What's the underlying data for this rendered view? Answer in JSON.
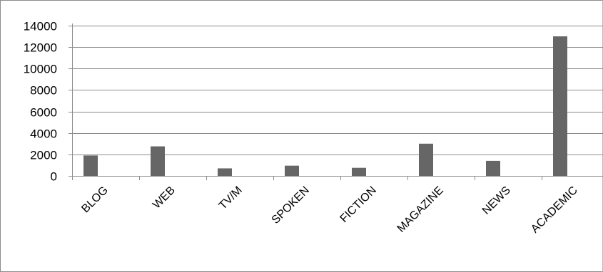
{
  "chart_data": {
    "type": "bar",
    "title": "",
    "xlabel": "",
    "ylabel": "",
    "categories": [
      "BLOG",
      "WEB",
      "TV/M",
      "SPOKEN",
      "FICTION",
      "MAGAZINE",
      "NEWS",
      "ACADEMIC"
    ],
    "values": [
      1900,
      2750,
      700,
      950,
      750,
      3000,
      1400,
      13000
    ],
    "ylim": [
      0,
      14000
    ],
    "yticks": [
      0,
      2000,
      4000,
      6000,
      8000,
      10000,
      12000,
      14000
    ],
    "grid": true,
    "legend": "none",
    "bar_color": "#666666",
    "gridline_color": "#8c8c8c"
  }
}
